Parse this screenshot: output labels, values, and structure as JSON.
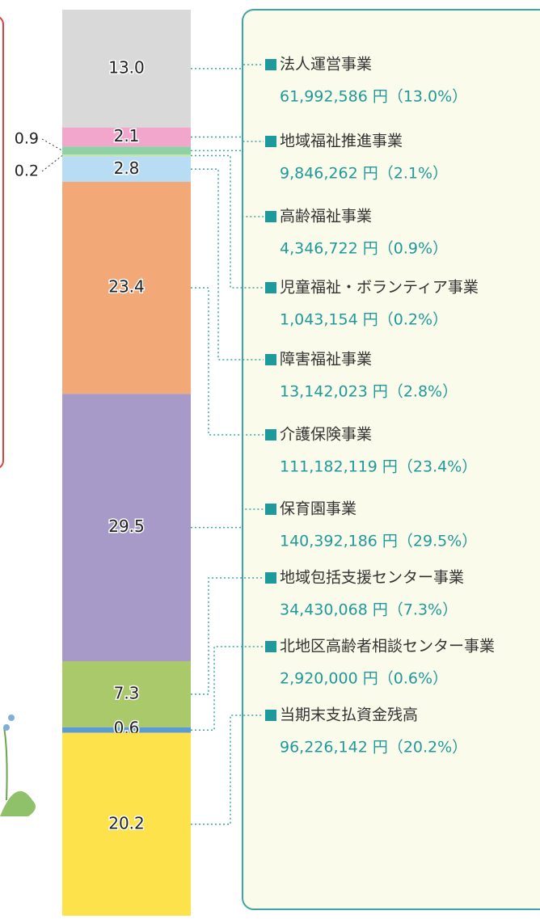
{
  "chart_data": {
    "type": "stacked-bar",
    "categories": [
      "法人運営事業",
      "地域福祉推進事業",
      "高齢福祉事業",
      "児童福祉・ボランティア事業",
      "障害福祉事業",
      "介護保険事業",
      "保育園事業",
      "地域包括支援センター事業",
      "北地区高齢者相談センター事業",
      "当期末支払資金残高"
    ],
    "values": [
      13.0,
      2.1,
      0.9,
      0.2,
      2.8,
      23.4,
      29.5,
      7.3,
      0.6,
      20.2
    ],
    "value_labels": [
      "13.0",
      "2.1",
      "0.9",
      "0.2",
      "2.8",
      "23.4",
      "29.5",
      "7.3",
      "0.6",
      "20.2"
    ],
    "details": [
      "61,992,586 円（13.0%）",
      "9,846,262 円（2.1%）",
      "4,346,722 円（0.9%）",
      "1,043,154 円（0.2%）",
      "13,142,023 円（2.8%）",
      "111,182,119 円（23.4%）",
      "140,392,186 円（29.5%）",
      "34,430,068 円（7.3%）",
      "2,920,000 円（0.6%）",
      "96,226,142 円（20.2%）"
    ],
    "colors": [
      "#d9d9d9",
      "#f2a6cc",
      "#8fd1a6",
      "#c6e4a4",
      "#b7dcf3",
      "#f3a977",
      "#a79ac9",
      "#a9c96a",
      "#5b9bd5",
      "#fde24c"
    ]
  }
}
